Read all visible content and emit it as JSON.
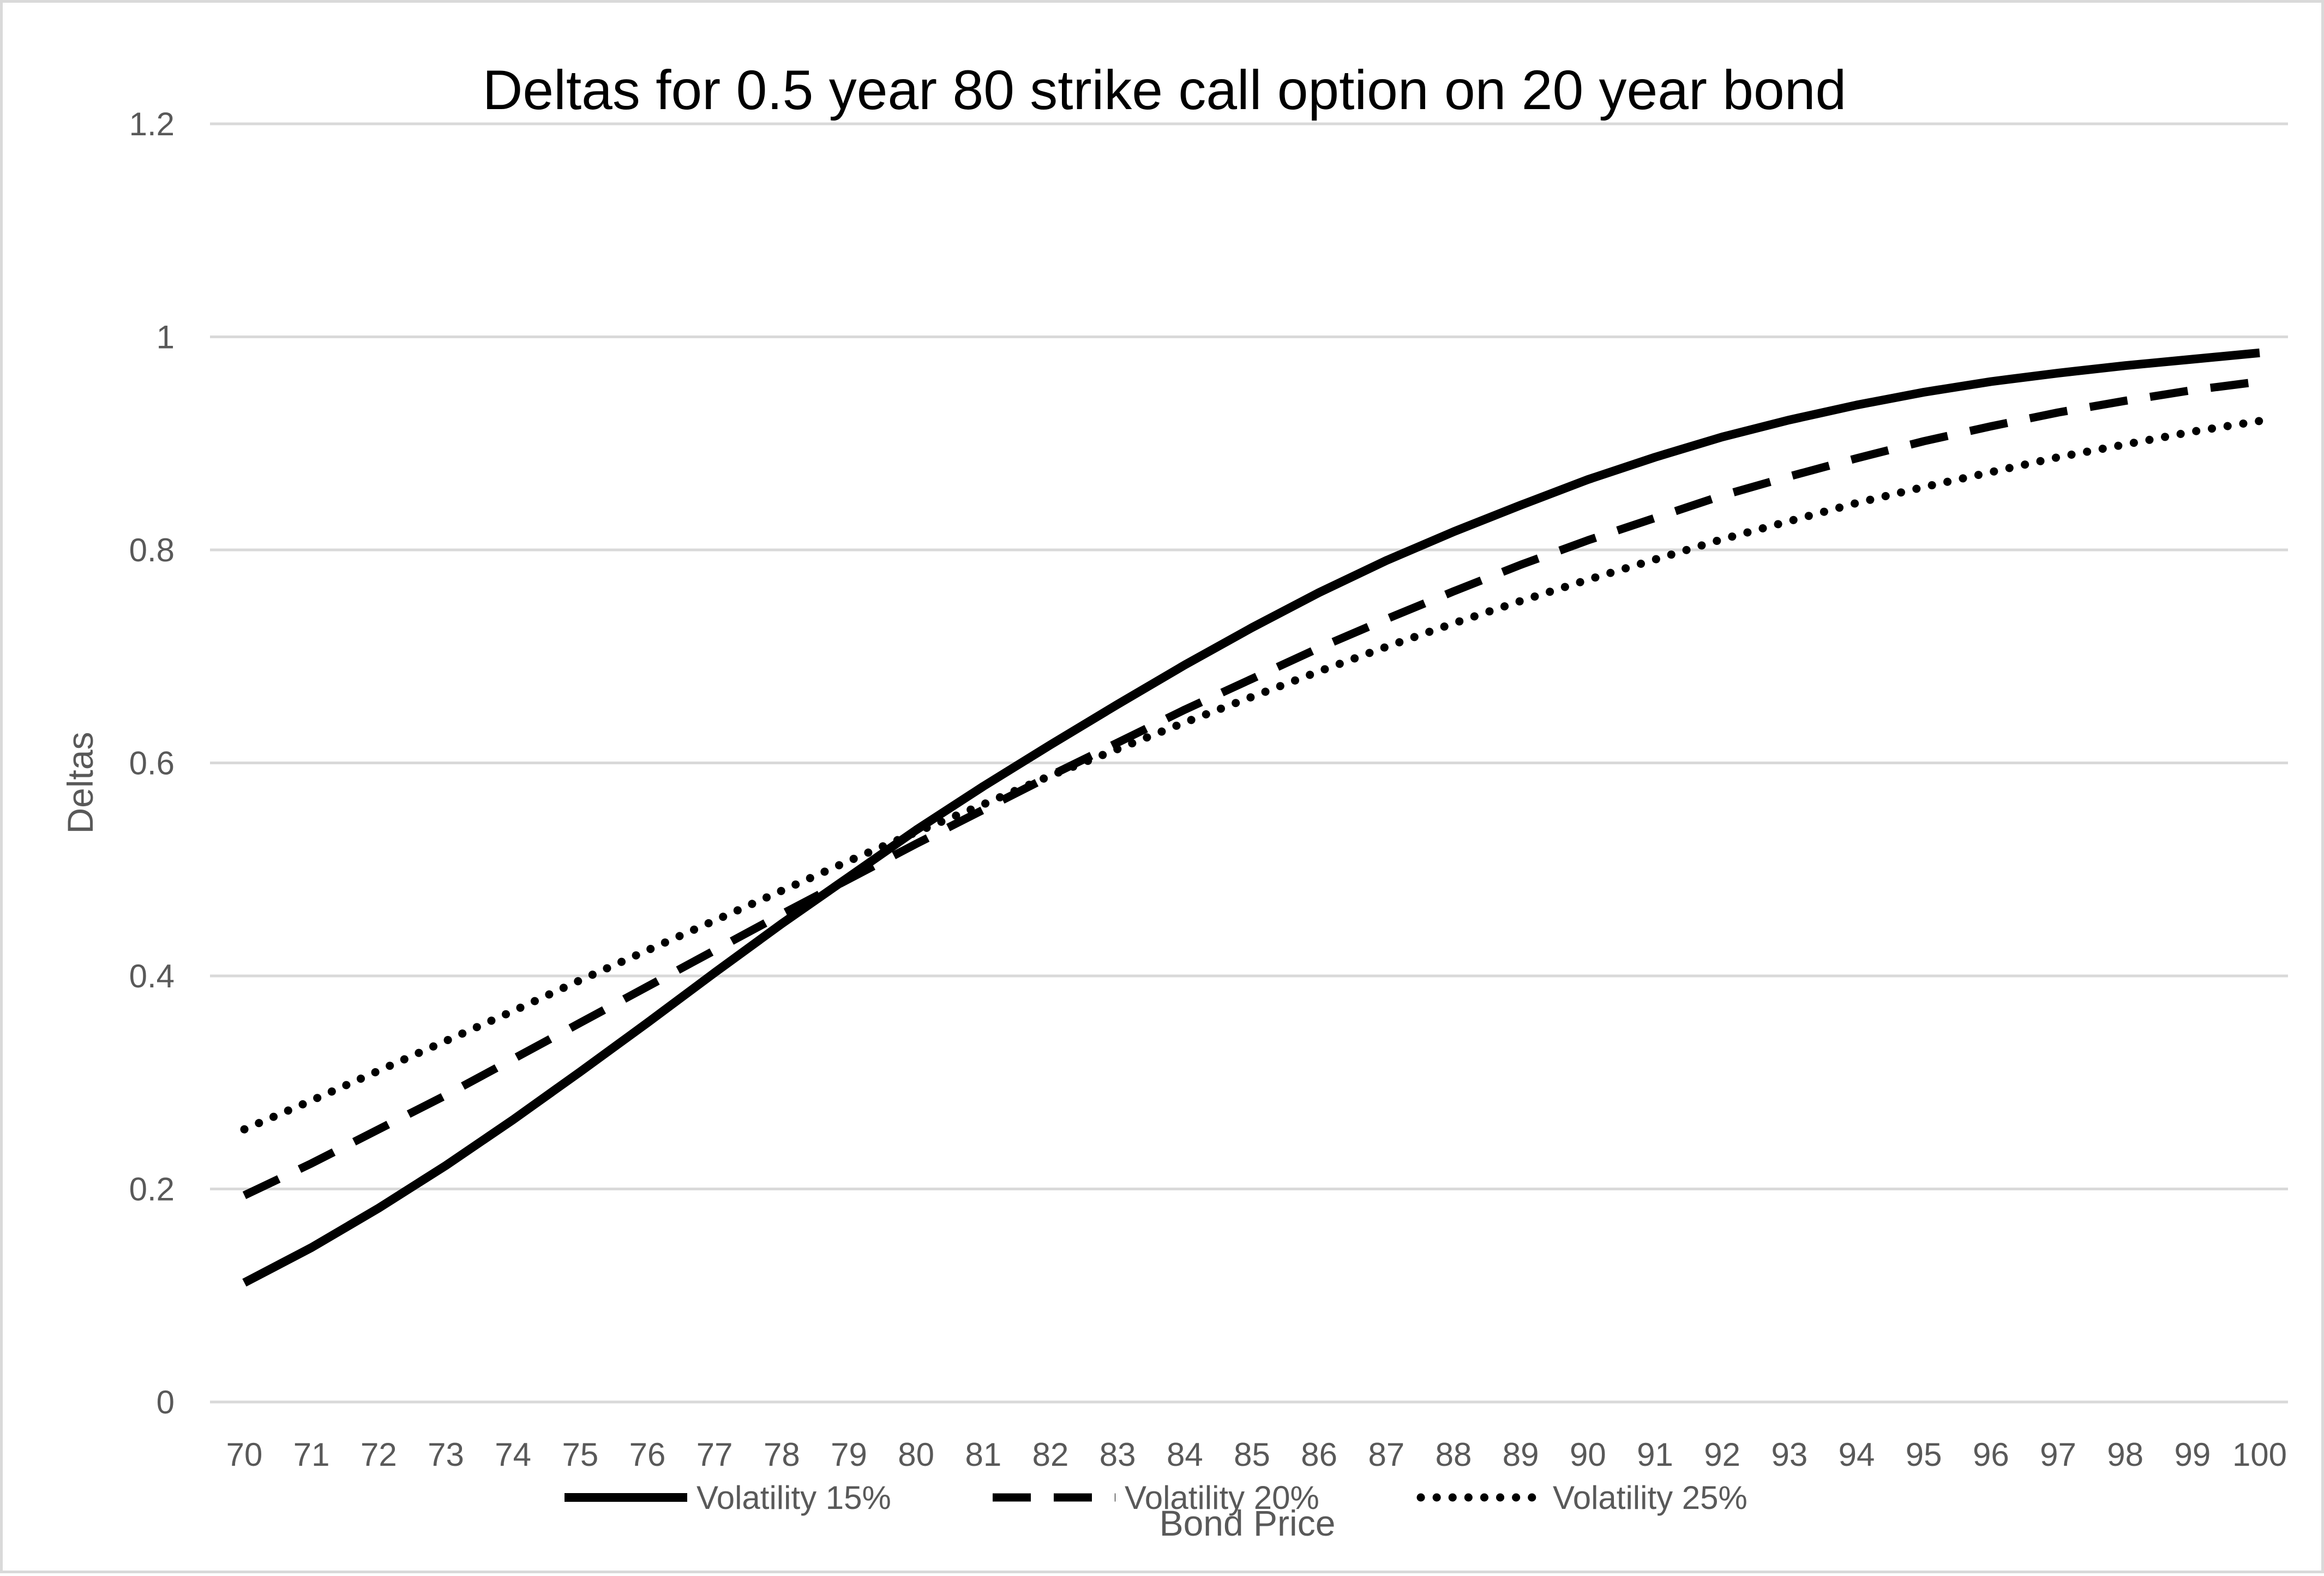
{
  "chart_data": {
    "type": "line",
    "title": "Deltas for 0.5 year 80 strike call option on 20 year bond",
    "xlabel": "Bond Price",
    "ylabel": "Deltas",
    "ylim": [
      0,
      1.2
    ],
    "y_ticks": [
      "0",
      "0.2",
      "0.4",
      "0.6",
      "0.8",
      "1",
      "1.2"
    ],
    "grid": "horizontal",
    "legend_position": "bottom",
    "categories": [
      "70",
      "71",
      "72",
      "73",
      "74",
      "75",
      "76",
      "77",
      "78",
      "79",
      "80",
      "81",
      "82",
      "83",
      "84",
      "85",
      "86",
      "87",
      "88",
      "89",
      "90",
      "91",
      "92",
      "93",
      "94",
      "95",
      "96",
      "97",
      "98",
      "99",
      "100"
    ],
    "series": [
      {
        "name": "Volatility 15%",
        "line_style": "solid",
        "color": "#000000",
        "values": [
          0.112,
          0.145,
          0.182,
          0.222,
          0.265,
          0.31,
          0.356,
          0.403,
          0.449,
          0.493,
          0.537,
          0.578,
          0.617,
          0.655,
          0.692,
          0.727,
          0.76,
          0.79,
          0.817,
          0.842,
          0.866,
          0.887,
          0.906,
          0.922,
          0.936,
          0.948,
          0.958,
          0.966,
          0.973,
          0.979,
          0.985
        ]
      },
      {
        "name": "Volatility 20%",
        "line_style": "dashed",
        "color": "#000000",
        "values": [
          0.194,
          0.224,
          0.256,
          0.288,
          0.322,
          0.356,
          0.39,
          0.424,
          0.458,
          0.491,
          0.524,
          0.556,
          0.588,
          0.619,
          0.65,
          0.679,
          0.708,
          0.735,
          0.761,
          0.786,
          0.809,
          0.83,
          0.851,
          0.869,
          0.886,
          0.902,
          0.916,
          0.929,
          0.94,
          0.95,
          0.958
        ]
      },
      {
        "name": "Volatility 25%",
        "line_style": "dotted",
        "color": "#000000",
        "values": [
          0.256,
          0.283,
          0.311,
          0.339,
          0.367,
          0.396,
          0.424,
          0.452,
          0.48,
          0.508,
          0.535,
          0.561,
          0.588,
          0.613,
          0.638,
          0.662,
          0.686,
          0.709,
          0.731,
          0.752,
          0.772,
          0.791,
          0.81,
          0.827,
          0.844,
          0.859,
          0.873,
          0.887,
          0.899,
          0.911,
          0.921
        ]
      }
    ]
  }
}
